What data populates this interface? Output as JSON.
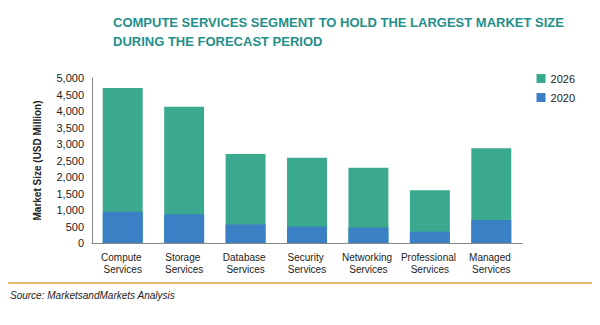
{
  "chart_data": {
    "type": "bar",
    "title": "COMPUTE SERVICES SEGMENT TO HOLD THE LARGEST MARKET SIZE DURING THE FORECAST PERIOD",
    "y_label": "Market Size (USD Million)",
    "annotations": [
      "Source: MarketsandMarkets Analysis"
    ],
    "categories": [
      "Compute Services",
      "Storage Services",
      "Database Services",
      "Security Services",
      "Networking Services",
      "Professional Services",
      "Managed Services"
    ],
    "series": [
      {
        "name": "2026",
        "color": "#3aa98e",
        "values": [
          4700,
          4130,
          2700,
          2580,
          2280,
          1600,
          2870
        ]
      },
      {
        "name": "2020",
        "color": "#3b7fc4",
        "values": [
          950,
          870,
          560,
          500,
          470,
          340,
          700
        ]
      }
    ],
    "ylim": [
      0,
      5000
    ],
    "yticks": [
      0,
      500,
      {
        "value": 1000,
        "label": "1,000"
      },
      {
        "value": 1500,
        "label": "1,500"
      },
      {
        "value": 2000,
        "label": "2,000"
      },
      {
        "value": 2500,
        "label": "2,500"
      },
      {
        "value": 3000,
        "label": "3,000"
      },
      {
        "value": 3500,
        "label": "3,500"
      },
      {
        "value": 4000,
        "label": "4,000"
      },
      {
        "value": 4500,
        "label": "4,500"
      },
      {
        "value": 5000,
        "label": "5,000"
      }
    ],
    "grid": false,
    "legend": "upper right"
  }
}
